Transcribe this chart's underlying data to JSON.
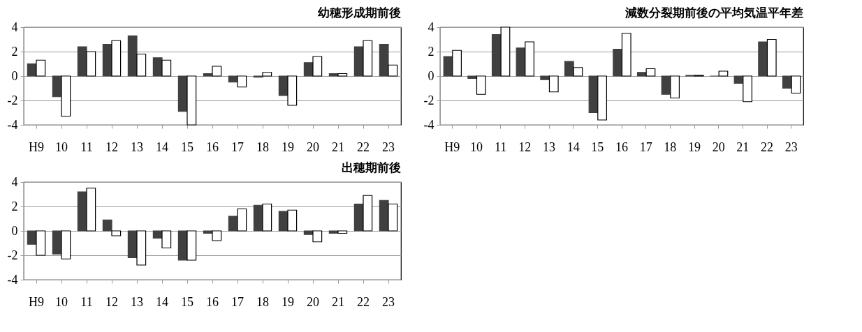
{
  "chart_data": [
    {
      "type": "bar",
      "title": "幼穂形成期前後",
      "categories": [
        "H9",
        "10",
        "11",
        "12",
        "13",
        "14",
        "15",
        "16",
        "17",
        "18",
        "19",
        "20",
        "21",
        "22",
        "23"
      ],
      "ylim": [
        -4,
        4
      ],
      "yticks": [
        -4,
        -2,
        0,
        2,
        4
      ],
      "grid": "y",
      "series": [
        {
          "color": "#404040",
          "values": [
            1.0,
            -1.7,
            2.4,
            2.6,
            3.3,
            1.5,
            -2.9,
            0.2,
            -0.5,
            -0.1,
            -1.6,
            1.1,
            0.2,
            2.4,
            2.6
          ]
        },
        {
          "color": "#ffffff",
          "values": [
            1.3,
            -3.3,
            2.0,
            2.9,
            1.8,
            1.3,
            -4.0,
            0.8,
            -0.9,
            0.3,
            -2.4,
            1.6,
            0.2,
            2.9,
            0.9
          ]
        }
      ]
    },
    {
      "type": "bar",
      "title": "減数分裂期前後の平均気温平年差",
      "categories": [
        "H9",
        "10",
        "11",
        "12",
        "13",
        "14",
        "15",
        "16",
        "17",
        "18",
        "19",
        "20",
        "21",
        "22",
        "23"
      ],
      "ylim": [
        -4,
        4
      ],
      "yticks": [
        -4,
        -2,
        0,
        2,
        4
      ],
      "grid": "y",
      "series": [
        {
          "color": "#404040",
          "values": [
            1.6,
            -0.2,
            3.4,
            2.3,
            -0.3,
            1.2,
            -3.0,
            2.2,
            0.3,
            -1.5,
            0.05,
            0.0,
            -0.6,
            2.8,
            -1.0
          ]
        },
        {
          "color": "#ffffff",
          "values": [
            2.1,
            -1.5,
            4.0,
            2.8,
            -1.3,
            0.7,
            -3.6,
            3.5,
            0.6,
            -1.8,
            0.05,
            0.4,
            -2.1,
            3.0,
            -1.4
          ]
        }
      ]
    },
    {
      "type": "bar",
      "title": "出穂期前後",
      "categories": [
        "H9",
        "10",
        "11",
        "12",
        "13",
        "14",
        "15",
        "16",
        "17",
        "18",
        "19",
        "20",
        "21",
        "22",
        "23"
      ],
      "ylim": [
        -4,
        4
      ],
      "yticks": [
        -4,
        -2,
        0,
        2,
        4
      ],
      "grid": "y",
      "series": [
        {
          "color": "#404040",
          "values": [
            -1.1,
            -1.9,
            3.2,
            0.9,
            -2.2,
            -0.6,
            -2.4,
            -0.2,
            1.2,
            2.1,
            1.6,
            -0.3,
            -0.2,
            2.2,
            2.5
          ]
        },
        {
          "color": "#ffffff",
          "values": [
            -2.0,
            -2.3,
            3.5,
            -0.4,
            -2.8,
            -1.4,
            -2.4,
            -0.8,
            1.8,
            2.2,
            1.7,
            -0.9,
            -0.2,
            2.9,
            2.2
          ]
        }
      ]
    }
  ]
}
